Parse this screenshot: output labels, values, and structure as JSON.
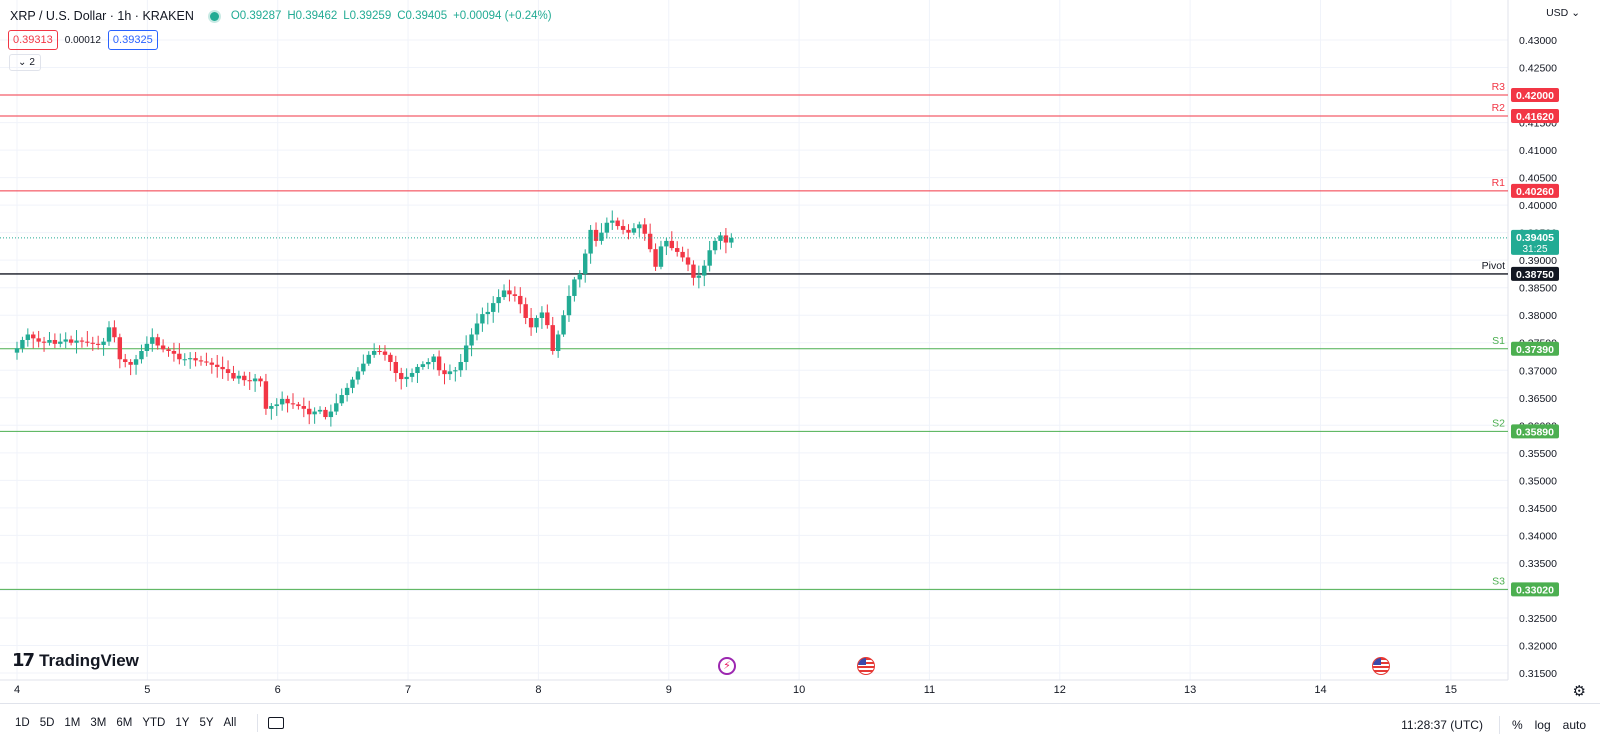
{
  "header": {
    "title": "XRP / U.S. Dollar · 1h · KRAKEN",
    "ohlc": {
      "open": "O0.39287",
      "high": "H0.39462",
      "low": "L0.39259",
      "close": "C0.39405",
      "change": "+0.00094 (+0.24%)"
    },
    "bid": "0.39313",
    "spread": "0.00012",
    "ask": "0.39325",
    "indicators_count": "2",
    "currency": "USD"
  },
  "branding": {
    "logo_mark": "17",
    "logo_text": "TradingView"
  },
  "bottom_bar": {
    "ranges": [
      "1D",
      "5D",
      "1M",
      "3M",
      "6M",
      "YTD",
      "1Y",
      "5Y",
      "All"
    ],
    "time": "11:28:37 (UTC)",
    "percent": "%",
    "log": "log",
    "auto": "auto"
  },
  "colors": {
    "up": "#22ab94",
    "down": "#f23645",
    "resistance": "#f23645",
    "support": "#4caf50",
    "pivot": "#131722",
    "grid": "#f0f3fa"
  },
  "chart_data": {
    "type": "candlestick",
    "symbol": "XRP / U.S. Dollar",
    "interval": "1h",
    "exchange": "KRAKEN",
    "ylim": [
      0.3125,
      0.4335
    ],
    "y_ticks": [
      "0.43000",
      "0.42500",
      "0.42000",
      "0.41500",
      "0.41000",
      "0.40500",
      "0.40000",
      "0.39500",
      "0.39000",
      "0.38500",
      "0.38000",
      "0.37500",
      "0.37000",
      "0.36500",
      "0.36000",
      "0.35500",
      "0.35000",
      "0.34500",
      "0.34000",
      "0.33500",
      "0.33000",
      "0.32500",
      "0.32000",
      "0.31500"
    ],
    "x_ticks": [
      "4",
      "5",
      "6",
      "7",
      "8",
      "9",
      "10",
      "11",
      "12",
      "13",
      "14",
      "15"
    ],
    "x_range_days": [
      4,
      15.5
    ],
    "last_price": "0.39405",
    "countdown": "31:25",
    "levels": [
      {
        "label": "R3",
        "value": 0.42,
        "text": "0.42000",
        "kind": "resistance"
      },
      {
        "label": "R2",
        "value": 0.4162,
        "text": "0.41620",
        "kind": "resistance"
      },
      {
        "label": "R1",
        "value": 0.4026,
        "text": "0.40260",
        "kind": "resistance"
      },
      {
        "label": "Pivot",
        "value": 0.3875,
        "text": "0.38750",
        "kind": "pivot"
      },
      {
        "label": "S1",
        "value": 0.3739,
        "text": "0.37390",
        "kind": "support"
      },
      {
        "label": "S2",
        "value": 0.3589,
        "text": "0.35890",
        "kind": "support"
      },
      {
        "label": "S3",
        "value": 0.3302,
        "text": "0.33020",
        "kind": "support"
      }
    ],
    "close_path": [
      0.374,
      0.3755,
      0.3765,
      0.3758,
      0.3752,
      0.375,
      0.3755,
      0.3748,
      0.3752,
      0.3756,
      0.375,
      0.3754,
      0.3752,
      0.375,
      0.3748,
      0.3746,
      0.3752,
      0.3778,
      0.376,
      0.372,
      0.3715,
      0.371,
      0.372,
      0.3735,
      0.3748,
      0.376,
      0.3745,
      0.3738,
      0.3735,
      0.373,
      0.372,
      0.372,
      0.3722,
      0.3718,
      0.3716,
      0.3714,
      0.371,
      0.3706,
      0.3702,
      0.3695,
      0.3685,
      0.369,
      0.3682,
      0.368,
      0.3685,
      0.368,
      0.363,
      0.3635,
      0.3638,
      0.3648,
      0.364,
      0.3638,
      0.3635,
      0.363,
      0.362,
      0.3625,
      0.3628,
      0.3615,
      0.3625,
      0.364,
      0.3655,
      0.3668,
      0.3683,
      0.3698,
      0.3712,
      0.3728,
      0.3735,
      0.3734,
      0.3728,
      0.3715,
      0.3695,
      0.3684,
      0.3688,
      0.3695,
      0.3706,
      0.3711,
      0.3715,
      0.3725,
      0.37,
      0.3693,
      0.3698,
      0.37,
      0.3715,
      0.3745,
      0.3765,
      0.3785,
      0.3802,
      0.3806,
      0.3822,
      0.3833,
      0.3845,
      0.3838,
      0.3835,
      0.382,
      0.3795,
      0.3778,
      0.3795,
      0.3805,
      0.3782,
      0.3735,
      0.3765,
      0.38,
      0.3835,
      0.3865,
      0.3875,
      0.3912,
      0.3955,
      0.3935,
      0.395,
      0.3968,
      0.3972,
      0.3962,
      0.3955,
      0.395,
      0.3958,
      0.3965,
      0.3948,
      0.392,
      0.3888,
      0.3925,
      0.3935,
      0.3922,
      0.3915,
      0.3905,
      0.3892,
      0.3868,
      0.3872,
      0.389,
      0.3918,
      0.3935,
      0.3945,
      0.3932,
      0.39405
    ]
  }
}
